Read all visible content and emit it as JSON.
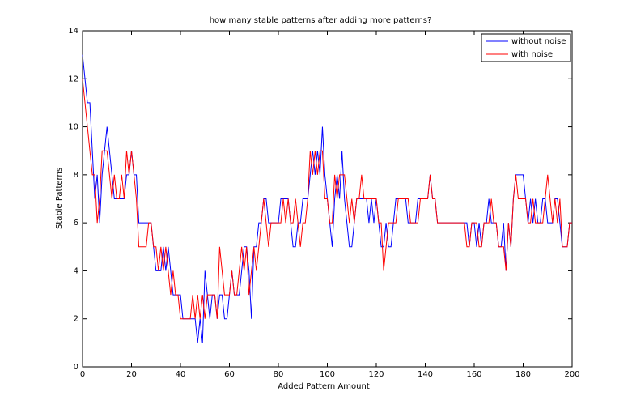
{
  "chart_data": {
    "type": "line",
    "title": "how many stable patterns after adding more patterns?",
    "xlabel": "Added Pattern Amount",
    "ylabel": "Stable Patterns",
    "x": [
      0,
      1,
      2,
      3,
      4,
      5,
      6,
      7,
      8,
      9,
      10,
      11,
      12,
      13,
      14,
      15,
      16,
      17,
      18,
      19,
      20,
      21,
      22,
      23,
      24,
      25,
      26,
      27,
      28,
      29,
      30,
      31,
      32,
      33,
      34,
      35,
      36,
      37,
      38,
      39,
      40,
      41,
      42,
      43,
      44,
      45,
      46,
      47,
      48,
      49,
      50,
      51,
      52,
      53,
      54,
      55,
      56,
      57,
      58,
      59,
      60,
      61,
      62,
      63,
      64,
      65,
      66,
      67,
      68,
      69,
      70,
      71,
      72,
      73,
      74,
      75,
      76,
      77,
      78,
      79,
      80,
      81,
      82,
      83,
      84,
      85,
      86,
      87,
      88,
      89,
      90,
      91,
      92,
      93,
      94,
      95,
      96,
      97,
      98,
      99,
      100,
      101,
      102,
      103,
      104,
      105,
      106,
      107,
      108,
      109,
      110,
      111,
      112,
      113,
      114,
      115,
      116,
      117,
      118,
      119,
      120,
      121,
      122,
      123,
      124,
      125,
      126,
      127,
      128,
      129,
      130,
      131,
      132,
      133,
      134,
      135,
      136,
      137,
      138,
      139,
      140,
      141,
      142,
      143,
      144,
      145,
      146,
      147,
      148,
      149,
      150,
      151,
      152,
      153,
      154,
      155,
      156,
      157,
      158,
      159,
      160,
      161,
      162,
      163,
      164,
      165,
      166,
      167,
      168,
      169,
      170,
      171,
      172,
      173,
      174,
      175,
      176,
      177,
      178,
      179,
      180,
      181,
      182,
      183,
      184,
      185,
      186,
      187,
      188,
      189,
      190,
      191,
      192,
      193,
      194,
      195,
      196,
      197,
      198,
      199,
      200
    ],
    "series": [
      {
        "name": "without noise",
        "color": "#0000ff",
        "values": [
          13,
          12,
          11,
          11,
          9,
          7,
          8,
          6,
          8,
          9,
          10,
          9,
          8,
          7,
          7,
          7,
          7,
          7,
          8,
          8,
          9,
          8,
          8,
          6,
          6,
          6,
          6,
          6,
          6,
          5,
          4,
          4,
          4,
          5,
          4,
          5,
          4,
          3,
          3,
          3,
          3,
          2,
          2,
          2,
          2,
          2,
          2,
          1,
          2,
          1,
          4,
          3,
          2,
          3,
          3,
          2,
          3,
          3,
          2,
          2,
          3,
          4,
          3,
          3,
          3,
          4,
          5,
          5,
          4,
          2,
          5,
          5,
          6,
          6,
          7,
          7,
          6,
          6,
          6,
          6,
          6,
          7,
          7,
          7,
          7,
          6,
          5,
          5,
          6,
          6,
          7,
          7,
          7,
          8,
          9,
          8,
          9,
          8,
          10,
          8,
          7,
          6,
          5,
          7,
          8,
          7,
          9,
          7,
          6,
          5,
          5,
          6,
          7,
          7,
          7,
          7,
          7,
          6,
          7,
          6,
          7,
          6,
          5,
          5,
          6,
          5,
          5,
          6,
          7,
          7,
          7,
          7,
          7,
          6,
          6,
          6,
          6,
          7,
          7,
          7,
          7,
          7,
          8,
          7,
          7,
          6,
          6,
          6,
          6,
          6,
          6,
          6,
          6,
          6,
          6,
          6,
          6,
          6,
          5,
          6,
          6,
          5,
          6,
          5,
          6,
          6,
          7,
          6,
          6,
          6,
          5,
          5,
          6,
          4,
          6,
          5,
          7,
          8,
          8,
          8,
          8,
          7,
          6,
          7,
          6,
          7,
          6,
          6,
          7,
          7,
          6,
          6,
          6,
          7,
          7,
          6,
          5,
          5,
          5,
          6,
          6
        ]
      },
      {
        "name": "with noise",
        "color": "#ff0000",
        "values": [
          12,
          11,
          10,
          9,
          8,
          8,
          6,
          7,
          9,
          9,
          9,
          8,
          7,
          8,
          7,
          7,
          8,
          7,
          9,
          8,
          9,
          8,
          7,
          5,
          5,
          5,
          5,
          6,
          6,
          5,
          5,
          4,
          5,
          4,
          5,
          4,
          3,
          4,
          3,
          3,
          2,
          2,
          2,
          2,
          2,
          3,
          2,
          3,
          2,
          3,
          2,
          3,
          3,
          3,
          3,
          2,
          5,
          4,
          3,
          3,
          3,
          4,
          3,
          3,
          4,
          5,
          4,
          5,
          3,
          4,
          5,
          4,
          5,
          6,
          7,
          6,
          5,
          6,
          6,
          6,
          6,
          6,
          7,
          6,
          7,
          6,
          6,
          7,
          6,
          5,
          6,
          6,
          7,
          9,
          8,
          9,
          8,
          9,
          9,
          7,
          7,
          6,
          6,
          8,
          7,
          8,
          8,
          8,
          7,
          6,
          7,
          6,
          7,
          7,
          8,
          7,
          7,
          7,
          7,
          7,
          7,
          6,
          6,
          4,
          5,
          6,
          6,
          6,
          6,
          7,
          7,
          7,
          7,
          7,
          6,
          6,
          6,
          6,
          7,
          7,
          7,
          7,
          8,
          7,
          7,
          6,
          6,
          6,
          6,
          6,
          6,
          6,
          6,
          6,
          6,
          6,
          6,
          5,
          5,
          6,
          6,
          6,
          5,
          5,
          6,
          6,
          6,
          7,
          6,
          6,
          5,
          5,
          5,
          4,
          6,
          5,
          7,
          8,
          7,
          7,
          7,
          7,
          6,
          6,
          7,
          6,
          6,
          6,
          6,
          7,
          8,
          7,
          6,
          7,
          6,
          7,
          5,
          5,
          5,
          6,
          6
        ]
      }
    ],
    "xlim": [
      0,
      200
    ],
    "xticks": [
      0,
      20,
      40,
      60,
      80,
      100,
      120,
      140,
      160,
      180,
      200
    ],
    "ylim": [
      0,
      14
    ],
    "yticks": [
      0,
      2,
      4,
      6,
      8,
      10,
      12,
      14
    ],
    "grid": false,
    "legend": "northeast"
  }
}
